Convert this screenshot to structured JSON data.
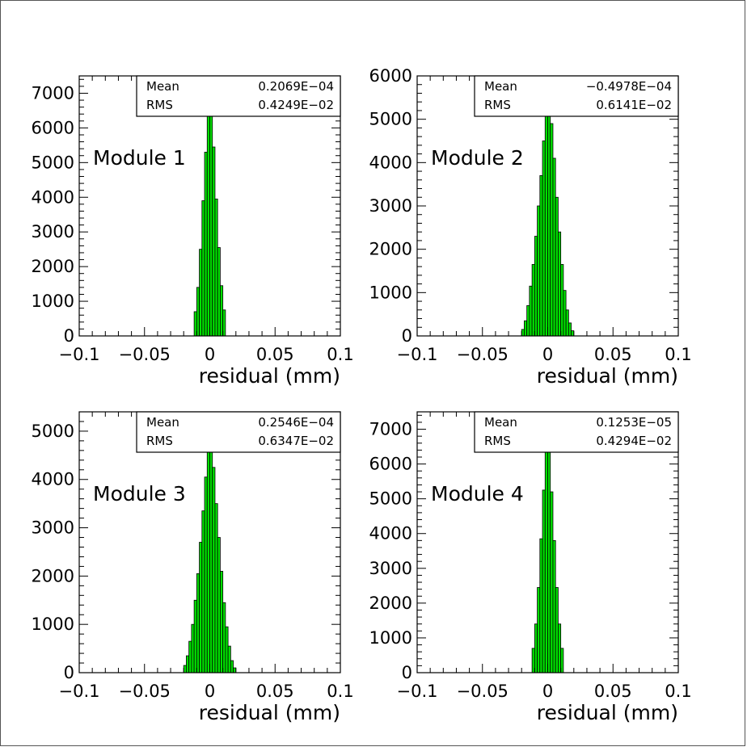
{
  "chart_data": [
    {
      "type": "bar",
      "annotation": "Module 1",
      "xlabel": "residual (mm)",
      "xlim": [
        -0.1,
        0.1
      ],
      "ylim": [
        0,
        7500
      ],
      "xticks": [
        "−0.1",
        "−0.05",
        "0",
        "0.05",
        "0.1"
      ],
      "yticks": [
        "0",
        "1000",
        "2000",
        "3000",
        "4000",
        "5000",
        "6000",
        "7000"
      ],
      "stats": {
        "mean_label": "Mean",
        "mean_value": "0.2069E−04",
        "rms_label": "RMS",
        "rms_value": "0.4249E−02"
      },
      "bin_width": 0.002,
      "bins": [
        {
          "x": -0.012,
          "y": 700
        },
        {
          "x": -0.01,
          "y": 1400
        },
        {
          "x": -0.008,
          "y": 2500
        },
        {
          "x": -0.006,
          "y": 3900
        },
        {
          "x": -0.004,
          "y": 5300
        },
        {
          "x": -0.002,
          "y": 6550
        },
        {
          "x": 0.0,
          "y": 6750
        },
        {
          "x": 0.002,
          "y": 5450
        },
        {
          "x": 0.004,
          "y": 3950
        },
        {
          "x": 0.006,
          "y": 2550
        },
        {
          "x": 0.008,
          "y": 1450
        },
        {
          "x": 0.01,
          "y": 750
        }
      ]
    },
    {
      "type": "bar",
      "annotation": "Module 2",
      "xlabel": "residual (mm)",
      "xlim": [
        -0.1,
        0.1
      ],
      "ylim": [
        0,
        6000
      ],
      "xticks": [
        "−0.1",
        "−0.05",
        "0",
        "0.05",
        "0.1"
      ],
      "yticks": [
        "0",
        "1000",
        "2000",
        "3000",
        "4000",
        "5000",
        "6000"
      ],
      "stats": {
        "mean_label": "Mean",
        "mean_value": "−0.4978E−04",
        "rms_label": "RMS",
        "rms_value": "0.6141E−02"
      },
      "bin_width": 0.002,
      "bins": [
        {
          "x": -0.02,
          "y": 150
        },
        {
          "x": -0.018,
          "y": 350
        },
        {
          "x": -0.016,
          "y": 700
        },
        {
          "x": -0.014,
          "y": 1150
        },
        {
          "x": -0.012,
          "y": 1650
        },
        {
          "x": -0.01,
          "y": 2300
        },
        {
          "x": -0.008,
          "y": 3000
        },
        {
          "x": -0.006,
          "y": 3700
        },
        {
          "x": -0.004,
          "y": 4500
        },
        {
          "x": -0.002,
          "y": 5100
        },
        {
          "x": 0.0,
          "y": 5400
        },
        {
          "x": 0.002,
          "y": 4900
        },
        {
          "x": 0.004,
          "y": 4100
        },
        {
          "x": 0.006,
          "y": 3200
        },
        {
          "x": 0.008,
          "y": 2400
        },
        {
          "x": 0.01,
          "y": 1650
        },
        {
          "x": 0.012,
          "y": 1050
        },
        {
          "x": 0.014,
          "y": 600
        },
        {
          "x": 0.016,
          "y": 300
        },
        {
          "x": 0.018,
          "y": 120
        }
      ]
    },
    {
      "type": "bar",
      "annotation": "Module 3",
      "xlabel": "residual (mm)",
      "xlim": [
        -0.1,
        0.1
      ],
      "ylim": [
        0,
        5400
      ],
      "xticks": [
        "−0.1",
        "−0.05",
        "0",
        "0.05",
        "0.1"
      ],
      "yticks": [
        "0",
        "1000",
        "2000",
        "3000",
        "4000",
        "5000"
      ],
      "stats": {
        "mean_label": "Mean",
        "mean_value": "0.2546E−04",
        "rms_label": "RMS",
        "rms_value": "0.6347E−02"
      },
      "bin_width": 0.002,
      "bins": [
        {
          "x": -0.02,
          "y": 150
        },
        {
          "x": -0.018,
          "y": 350
        },
        {
          "x": -0.016,
          "y": 650
        },
        {
          "x": -0.014,
          "y": 1000
        },
        {
          "x": -0.012,
          "y": 1500
        },
        {
          "x": -0.01,
          "y": 2050
        },
        {
          "x": -0.008,
          "y": 2700
        },
        {
          "x": -0.006,
          "y": 3350
        },
        {
          "x": -0.004,
          "y": 4050
        },
        {
          "x": -0.002,
          "y": 4650
        },
        {
          "x": 0.0,
          "y": 4850
        },
        {
          "x": 0.002,
          "y": 4250
        },
        {
          "x": 0.004,
          "y": 3500
        },
        {
          "x": 0.006,
          "y": 2800
        },
        {
          "x": 0.008,
          "y": 2100
        },
        {
          "x": 0.01,
          "y": 1450
        },
        {
          "x": 0.012,
          "y": 950
        },
        {
          "x": 0.014,
          "y": 550
        },
        {
          "x": 0.016,
          "y": 250
        },
        {
          "x": 0.018,
          "y": 100
        }
      ]
    },
    {
      "type": "bar",
      "annotation": "Module 4",
      "xlabel": "residual (mm)",
      "xlim": [
        -0.1,
        0.1
      ],
      "ylim": [
        0,
        7500
      ],
      "xticks": [
        "−0.1",
        "−0.05",
        "0",
        "0.05",
        "0.1"
      ],
      "yticks": [
        "0",
        "1000",
        "2000",
        "3000",
        "4000",
        "5000",
        "6000",
        "7000"
      ],
      "stats": {
        "mean_label": "Mean",
        "mean_value": "0.1253E−05",
        "rms_label": "RMS",
        "rms_value": "0.4294E−02"
      },
      "bin_width": 0.002,
      "bins": [
        {
          "x": -0.012,
          "y": 700
        },
        {
          "x": -0.01,
          "y": 1400
        },
        {
          "x": -0.008,
          "y": 2450
        },
        {
          "x": -0.006,
          "y": 3850
        },
        {
          "x": -0.004,
          "y": 5250
        },
        {
          "x": -0.002,
          "y": 6500
        },
        {
          "x": 0.0,
          "y": 6850
        },
        {
          "x": 0.002,
          "y": 5200
        },
        {
          "x": 0.004,
          "y": 3800
        },
        {
          "x": 0.006,
          "y": 2450
        },
        {
          "x": 0.008,
          "y": 1400
        },
        {
          "x": 0.01,
          "y": 700
        }
      ]
    }
  ],
  "colors": {
    "fill": "#00e000",
    "stroke": "#000000"
  }
}
